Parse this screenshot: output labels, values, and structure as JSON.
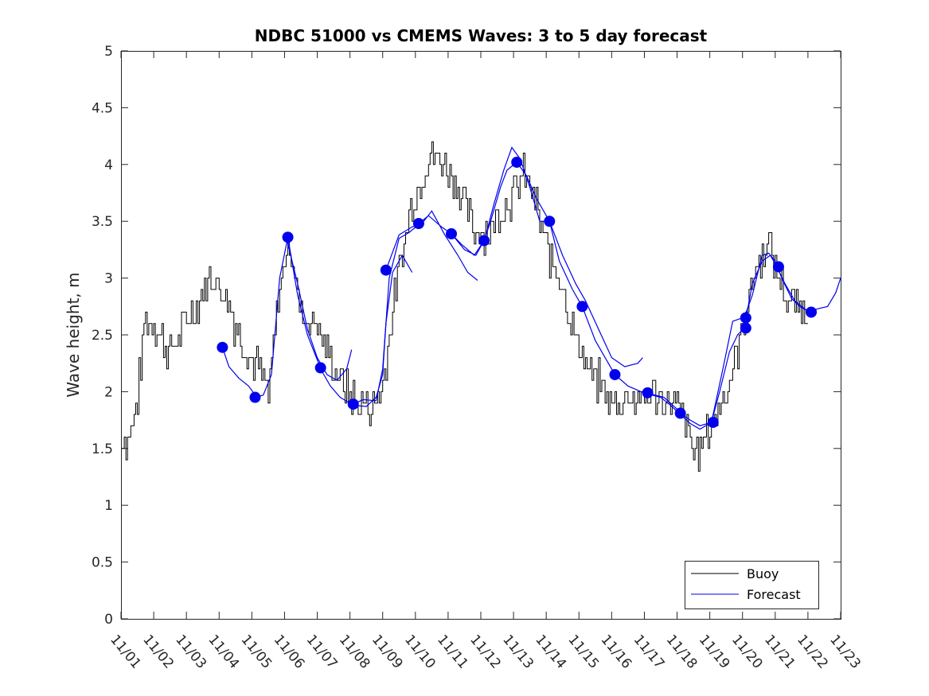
{
  "chart_data": {
    "type": "line",
    "title": "NDBC 51000 vs CMEMS Waves: 3 to 5 day forecast",
    "xlabel": "",
    "ylabel": "Wave height, m",
    "xlim": [
      0,
      22
    ],
    "ylim": [
      0,
      5
    ],
    "grid": false,
    "legend_position": "bottom-right",
    "x_tick_labels": [
      "11/01",
      "11/02",
      "11/03",
      "11/04",
      "11/05",
      "11/06",
      "11/07",
      "11/08",
      "11/09",
      "11/10",
      "11/11",
      "11/12",
      "11/13",
      "11/14",
      "11/15",
      "11/16",
      "11/17",
      "11/18",
      "11/19",
      "11/20",
      "11/21",
      "11/22",
      "11/23"
    ],
    "y_ticks": [
      0,
      0.5,
      1,
      1.5,
      2,
      2.5,
      3,
      3.5,
      4,
      4.5,
      5
    ],
    "y_tick_labels": [
      "0",
      "0.5",
      "1",
      "1.5",
      "2",
      "2.5",
      "3",
      "3.5",
      "4",
      "4.5",
      "5"
    ],
    "series": [
      {
        "name": "Buoy",
        "color": "#000000",
        "x_day_offset": 0,
        "x_step_days": 0.1,
        "noise_amplitude": 0.22,
        "envelope": [
          [
            0,
            1.55
          ],
          [
            0.3,
            1.65
          ],
          [
            0.5,
            1.9
          ],
          [
            0.7,
            2.6
          ],
          [
            1.0,
            2.65
          ],
          [
            1.4,
            2.35
          ],
          [
            1.9,
            2.55
          ],
          [
            2.3,
            2.8
          ],
          [
            2.7,
            3.0
          ],
          [
            3.0,
            2.95
          ],
          [
            3.3,
            2.75
          ],
          [
            3.6,
            2.5
          ],
          [
            4.0,
            2.3
          ],
          [
            4.4,
            2.05
          ],
          [
            4.5,
            1.95
          ],
          [
            4.8,
            2.8
          ],
          [
            5.0,
            3.2
          ],
          [
            5.15,
            3.35
          ],
          [
            5.5,
            2.65
          ],
          [
            6.0,
            2.6
          ],
          [
            6.5,
            2.2
          ],
          [
            7.0,
            1.95
          ],
          [
            7.3,
            1.9
          ],
          [
            7.6,
            1.85
          ],
          [
            8.0,
            2.05
          ],
          [
            8.4,
            2.9
          ],
          [
            8.8,
            3.55
          ],
          [
            9.2,
            3.9
          ],
          [
            9.5,
            4.1
          ],
          [
            10.0,
            3.95
          ],
          [
            10.4,
            3.75
          ],
          [
            10.8,
            3.4
          ],
          [
            11.3,
            3.45
          ],
          [
            11.8,
            3.65
          ],
          [
            12.3,
            3.9
          ],
          [
            12.6,
            3.75
          ],
          [
            13.0,
            3.25
          ],
          [
            13.5,
            2.95
          ],
          [
            13.9,
            2.45
          ],
          [
            14.3,
            2.2
          ],
          [
            14.7,
            2.0
          ],
          [
            15.0,
            1.9
          ],
          [
            15.5,
            1.95
          ],
          [
            16.0,
            1.95
          ],
          [
            16.5,
            1.95
          ],
          [
            17.0,
            1.85
          ],
          [
            17.3,
            1.7
          ],
          [
            17.5,
            1.45
          ],
          [
            17.8,
            1.55
          ],
          [
            18.2,
            1.75
          ],
          [
            18.6,
            2.1
          ],
          [
            19.0,
            2.6
          ],
          [
            19.4,
            3.1
          ],
          [
            19.8,
            3.3
          ],
          [
            20.0,
            3.1
          ],
          [
            20.4,
            2.8
          ],
          [
            20.8,
            2.75
          ],
          [
            21.0,
            2.75
          ]
        ]
      },
      {
        "name": "Forecast",
        "color": "#0000ee",
        "segments": [
          [
            [
              3.1,
              2.39
            ],
            [
              3.3,
              2.22
            ],
            [
              3.6,
              2.12
            ],
            [
              3.9,
              2.05
            ],
            [
              4.1,
              1.97
            ]
          ],
          [
            [
              4.1,
              1.95
            ],
            [
              4.35,
              1.97
            ],
            [
              4.6,
              2.15
            ],
            [
              4.85,
              3.0
            ],
            [
              5.1,
              3.36
            ],
            [
              5.4,
              2.85
            ],
            [
              5.7,
              2.5
            ],
            [
              6.0,
              2.28
            ],
            [
              6.1,
              2.21
            ]
          ],
          [
            [
              5.05,
              3.36
            ],
            [
              5.4,
              2.95
            ],
            [
              5.7,
              2.55
            ],
            [
              6.0,
              2.3
            ],
            [
              6.3,
              2.15
            ],
            [
              6.6,
              2.1
            ],
            [
              6.9,
              2.2
            ],
            [
              7.05,
              2.37
            ]
          ],
          [
            [
              6.1,
              2.2
            ],
            [
              6.4,
              2.05
            ],
            [
              6.7,
              1.95
            ],
            [
              7.1,
              1.88
            ],
            [
              7.5,
              1.87
            ],
            [
              7.8,
              1.95
            ],
            [
              8.0,
              2.15
            ],
            [
              8.1,
              2.6
            ],
            [
              8.3,
              3.05
            ],
            [
              8.6,
              3.2
            ],
            [
              8.9,
              3.05
            ]
          ],
          [
            [
              7.1,
              1.89
            ],
            [
              7.4,
              1.93
            ],
            [
              7.8,
              1.92
            ],
            [
              8.0,
              2.2
            ],
            [
              8.2,
              3.0
            ],
            [
              8.5,
              3.35
            ],
            [
              8.8,
              3.4
            ],
            [
              9.1,
              3.47
            ]
          ],
          [
            [
              8.1,
              3.07
            ],
            [
              8.5,
              3.38
            ],
            [
              8.9,
              3.45
            ],
            [
              9.2,
              3.48
            ],
            [
              9.5,
              3.59
            ],
            [
              9.9,
              3.38
            ],
            [
              10.3,
              3.2
            ],
            [
              10.6,
              3.05
            ],
            [
              10.9,
              2.98
            ]
          ],
          [
            [
              9.1,
              3.48
            ],
            [
              9.4,
              3.55
            ],
            [
              9.8,
              3.45
            ],
            [
              10.1,
              3.39
            ],
            [
              10.4,
              3.3
            ],
            [
              10.8,
              3.2
            ],
            [
              11.1,
              3.33
            ]
          ],
          [
            [
              10.1,
              3.39
            ],
            [
              10.5,
              3.25
            ],
            [
              10.85,
              3.2
            ],
            [
              11.1,
              3.33
            ],
            [
              11.3,
              3.5
            ],
            [
              11.6,
              3.8
            ],
            [
              11.8,
              3.95
            ],
            [
              12.1,
              4.02
            ],
            [
              12.4,
              3.9
            ],
            [
              12.7,
              3.7
            ],
            [
              13.1,
              3.5
            ]
          ],
          [
            [
              11.1,
              3.32
            ],
            [
              11.4,
              3.65
            ],
            [
              11.7,
              3.95
            ],
            [
              11.95,
              4.15
            ],
            [
              12.2,
              4.05
            ],
            [
              12.5,
              3.8
            ],
            [
              12.8,
              3.5
            ],
            [
              13.1,
              3.5
            ],
            [
              13.4,
              3.15
            ],
            [
              13.8,
              2.9
            ],
            [
              14.1,
              2.75
            ]
          ],
          [
            [
              13.1,
              3.5
            ],
            [
              13.5,
              3.2
            ],
            [
              13.9,
              2.95
            ],
            [
              14.2,
              2.8
            ],
            [
              14.6,
              2.55
            ],
            [
              15.0,
              2.3
            ],
            [
              15.4,
              2.22
            ],
            [
              15.8,
              2.25
            ],
            [
              15.95,
              2.3
            ]
          ],
          [
            [
              14.1,
              2.75
            ],
            [
              14.5,
              2.45
            ],
            [
              14.8,
              2.3
            ],
            [
              15.1,
              2.15
            ],
            [
              15.5,
              2.05
            ],
            [
              15.9,
              2.0
            ],
            [
              16.2,
              1.98
            ],
            [
              16.6,
              1.95
            ],
            [
              17.1,
              1.82
            ]
          ],
          [
            [
              16.1,
              1.98
            ],
            [
              16.5,
              1.95
            ],
            [
              16.8,
              1.88
            ],
            [
              17.1,
              1.8
            ],
            [
              17.4,
              1.72
            ],
            [
              17.7,
              1.67
            ],
            [
              18.05,
              1.73
            ],
            [
              18.4,
              2.2
            ],
            [
              18.7,
              2.62
            ],
            [
              19.0,
              2.65
            ]
          ],
          [
            [
              17.1,
              1.81
            ],
            [
              17.4,
              1.75
            ],
            [
              17.7,
              1.7
            ],
            [
              18.05,
              1.73
            ],
            [
              18.3,
              2.0
            ],
            [
              18.6,
              2.35
            ],
            [
              18.85,
              2.5
            ],
            [
              19.05,
              2.56
            ],
            [
              19.3,
              2.95
            ],
            [
              19.6,
              3.15
            ],
            [
              19.85,
              3.2
            ],
            [
              20.05,
              3.1
            ]
          ],
          [
            [
              19.05,
              2.65
            ],
            [
              19.3,
              2.85
            ],
            [
              19.6,
              3.2
            ],
            [
              19.8,
              3.22
            ],
            [
              20.0,
              3.15
            ],
            [
              20.2,
              3.0
            ],
            [
              20.5,
              2.82
            ],
            [
              20.75,
              2.75
            ],
            [
              21.05,
              2.7
            ]
          ],
          [
            [
              20.05,
              3.1
            ],
            [
              20.3,
              2.95
            ],
            [
              20.6,
              2.8
            ],
            [
              20.9,
              2.73
            ],
            [
              21.05,
              2.7
            ],
            [
              21.3,
              2.73
            ],
            [
              21.6,
              2.75
            ],
            [
              21.85,
              2.87
            ],
            [
              22.0,
              3.0
            ]
          ]
        ]
      }
    ],
    "markers": {
      "name": "Forecast analysis points",
      "color": "#0000ee",
      "x": [
        3.1,
        4.1,
        5.1,
        6.1,
        7.1,
        8.1,
        9.1,
        10.1,
        11.1,
        12.1,
        13.1,
        14.1,
        15.1,
        16.1,
        17.1,
        18.1,
        19.1,
        19.1,
        20.1,
        21.1
      ],
      "y": [
        2.39,
        1.95,
        3.36,
        2.21,
        1.89,
        3.07,
        3.48,
        3.39,
        3.33,
        4.02,
        3.5,
        2.75,
        2.15,
        1.99,
        1.81,
        1.73,
        2.65,
        2.56,
        3.1,
        2.7
      ]
    }
  },
  "legend": {
    "entries": [
      {
        "label": "Buoy",
        "color": "#000000"
      },
      {
        "label": "Forecast",
        "color": "#0000ee"
      }
    ]
  }
}
